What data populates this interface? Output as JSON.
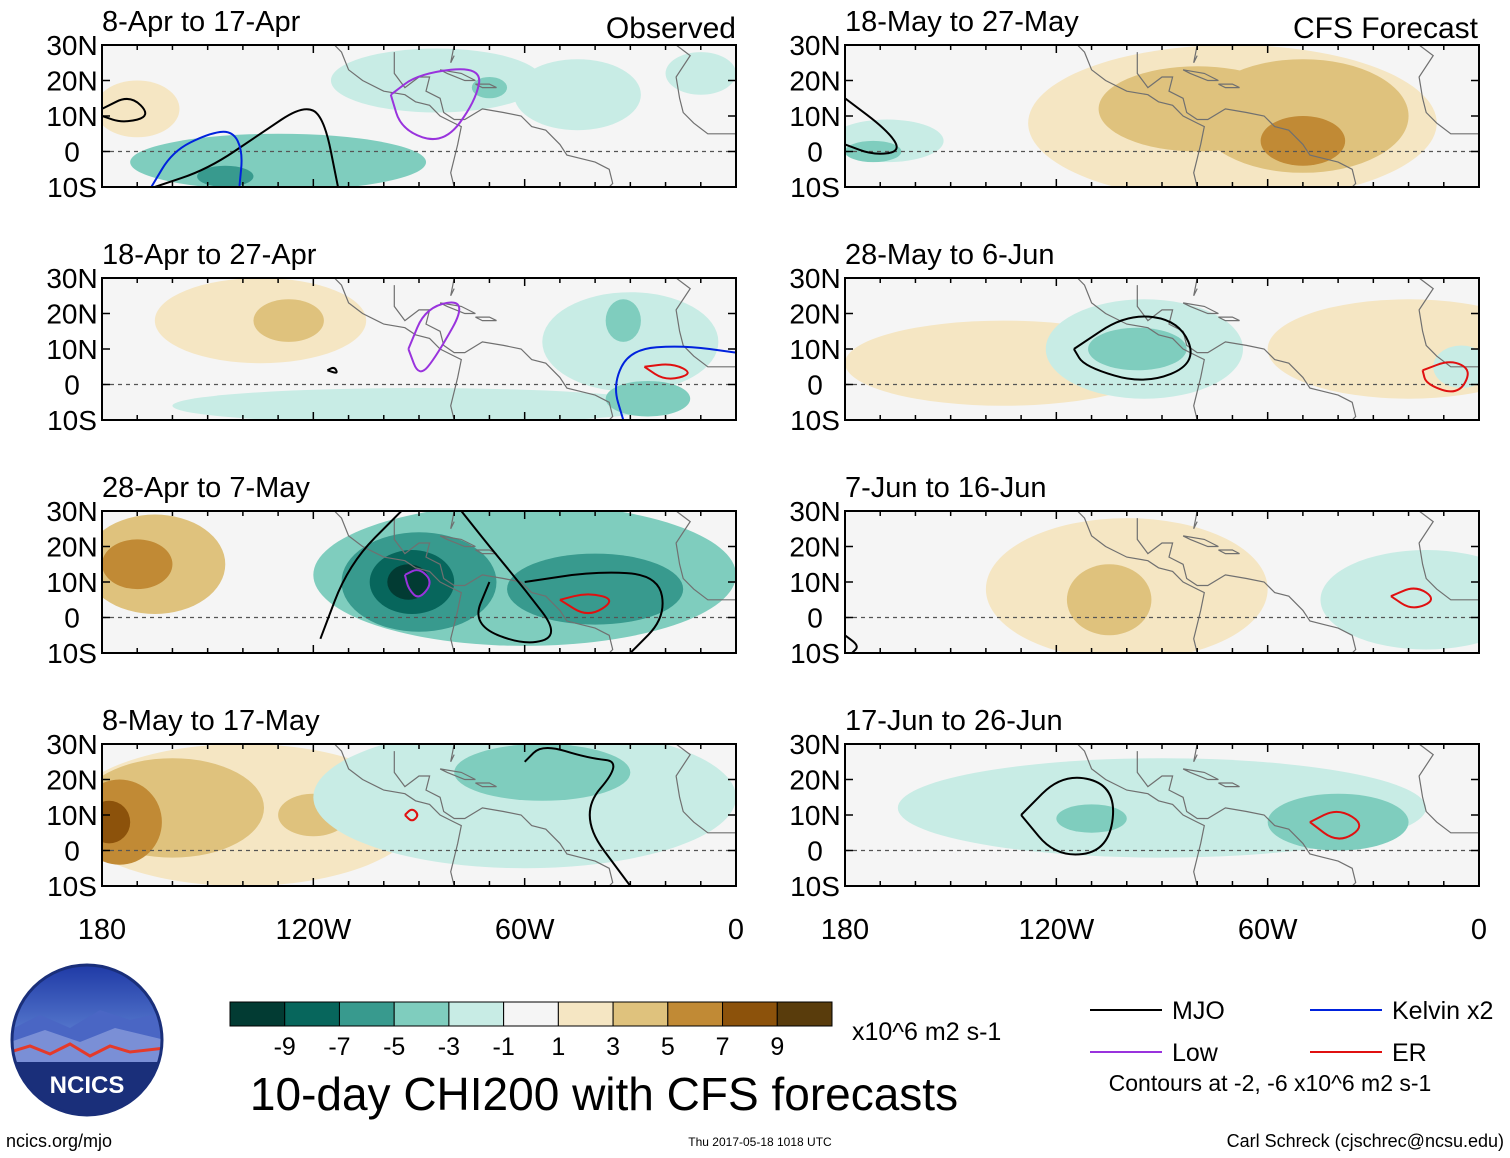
{
  "title": "10-day CHI200 with CFS forecasts",
  "url": "ncics.org/mjo",
  "timestamp": "Thu 2017-05-18 1018 UTC",
  "author": "Carl Schreck (cjschrec@ncsu.edu)",
  "logo_text": "NCICS",
  "colors": {
    "scale": [
      "#023b33",
      "#07665c",
      "#389a8e",
      "#7fcdbe",
      "#c8ece5",
      "#f5f5f5",
      "#f5e6c3",
      "#dfc27d",
      "#c18a35",
      "#8c520b",
      "#593c0c"
    ],
    "mjo": "#000000",
    "low": "#9933dd",
    "kelvin": "#0022dd",
    "er": "#e01010",
    "coast": "#707070"
  },
  "chart_data": {
    "type": "contour-map-panels",
    "variable": "CHI200 velocity potential anomaly",
    "units": "x10^6 m2 s-1",
    "xlim": [
      -180,
      0
    ],
    "ylim": [
      -10,
      30
    ],
    "x_ticks": [
      {
        "value": -180,
        "label": "180"
      },
      {
        "value": -120,
        "label": "120W"
      },
      {
        "value": -60,
        "label": "60W"
      },
      {
        "value": 0,
        "label": "0"
      }
    ],
    "y_ticks": [
      {
        "value": 30,
        "label": "30N"
      },
      {
        "value": 20,
        "label": "20N"
      },
      {
        "value": 10,
        "label": "10N"
      },
      {
        "value": 0,
        "label": "0"
      },
      {
        "value": -10,
        "label": "10S"
      }
    ],
    "colorbar": {
      "levels": [
        -9,
        -7,
        -5,
        -3,
        -1,
        1,
        3,
        5,
        7,
        9
      ],
      "labels": [
        "-9",
        "-7",
        "-5",
        "-3",
        "-1",
        "1",
        "3",
        "5",
        "7",
        "9"
      ],
      "units_label": "x10^6 m2 s-1"
    },
    "column_headers": [
      "Observed",
      "CFS Forecast"
    ],
    "legend": [
      {
        "name": "MJO",
        "color": "#000000"
      },
      {
        "name": "Kelvin x2",
        "color": "#0022dd"
      },
      {
        "name": "Low",
        "color": "#9933dd"
      },
      {
        "name": "ER",
        "color": "#e01010"
      }
    ],
    "contours_note": "Contours at -2, -6 x10^6 m2 s-1",
    "panels": [
      {
        "title": "8-Apr to 17-Apr",
        "kind": "Observed",
        "anomalies": [
          {
            "lon": -170,
            "lat": 12,
            "rx": 12,
            "ry": 8,
            "value": 2
          },
          {
            "lon": -130,
            "lat": -3,
            "rx": 42,
            "ry": 8,
            "value": -3
          },
          {
            "lon": -145,
            "lat": -7,
            "rx": 8,
            "ry": 3,
            "value": -5
          },
          {
            "lon": -85,
            "lat": 20,
            "rx": 30,
            "ry": 9,
            "value": -2
          },
          {
            "lon": -45,
            "lat": 16,
            "rx": 18,
            "ry": 10,
            "value": -2
          },
          {
            "lon": -10,
            "lat": 22,
            "rx": 10,
            "ry": 6,
            "value": -2
          },
          {
            "lon": -70,
            "lat": 18,
            "rx": 5,
            "ry": 3,
            "value": -4
          }
        ],
        "contours": [
          {
            "type": "mjo",
            "pts": [
              [
                -180,
                12
              ],
              [
                -172,
                16
              ],
              [
                -166,
                10
              ],
              [
                -174,
                8
              ],
              [
                -180,
                10
              ]
            ]
          },
          {
            "type": "mjo",
            "pts": [
              [
                -165,
                -10
              ],
              [
                -150,
                -5
              ],
              [
                -135,
                5
              ],
              [
                -123,
                13
              ],
              [
                -117,
                10
              ],
              [
                -113,
                -10
              ]
            ]
          },
          {
            "type": "kelvin",
            "pts": [
              [
                -166,
                -10
              ],
              [
                -160,
                0
              ],
              [
                -150,
                5
              ],
              [
                -143,
                6
              ],
              [
                -140,
                0
              ],
              [
                -141,
                -10
              ]
            ]
          },
          {
            "type": "low",
            "pts": [
              [
                -98,
                16
              ],
              [
                -90,
                22
              ],
              [
                -72,
                24
              ],
              [
                -74,
                14
              ],
              [
                -83,
                2
              ],
              [
                -95,
                6
              ],
              [
                -98,
                16
              ]
            ]
          }
        ]
      },
      {
        "title": "18-May to 27-May",
        "kind": "CFS Forecast",
        "anomalies": [
          {
            "lon": -70,
            "lat": 8,
            "rx": 58,
            "ry": 22,
            "value": 2
          },
          {
            "lon": -80,
            "lat": 12,
            "rx": 28,
            "ry": 12,
            "value": 4
          },
          {
            "lon": -50,
            "lat": 10,
            "rx": 30,
            "ry": 16,
            "value": 5
          },
          {
            "lon": -50,
            "lat": 3,
            "rx": 12,
            "ry": 7,
            "value": 7
          },
          {
            "lon": -168,
            "lat": 3,
            "rx": 16,
            "ry": 6,
            "value": -2
          },
          {
            "lon": -172,
            "lat": 0,
            "rx": 8,
            "ry": 3,
            "value": -3
          }
        ],
        "contours": [
          {
            "type": "mjo",
            "pts": [
              [
                -180,
                15
              ],
              [
                -168,
                6
              ],
              [
                -164,
                0
              ],
              [
                -172,
                -1
              ],
              [
                -180,
                2
              ]
            ]
          }
        ]
      },
      {
        "title": "18-Apr to 27-Apr",
        "kind": "Observed",
        "anomalies": [
          {
            "lon": -135,
            "lat": 18,
            "rx": 30,
            "ry": 12,
            "value": 2
          },
          {
            "lon": -127,
            "lat": 18,
            "rx": 10,
            "ry": 6,
            "value": 4
          },
          {
            "lon": -90,
            "lat": -6,
            "rx": 70,
            "ry": 5,
            "value": -2
          },
          {
            "lon": -30,
            "lat": 12,
            "rx": 25,
            "ry": 14,
            "value": -2
          },
          {
            "lon": -25,
            "lat": -4,
            "rx": 12,
            "ry": 5,
            "value": -3
          },
          {
            "lon": -32,
            "lat": 18,
            "rx": 5,
            "ry": 6,
            "value": -3
          }
        ],
        "contours": [
          {
            "type": "low",
            "pts": [
              [
                -93,
                10
              ],
              [
                -88,
                22
              ],
              [
                -76,
                24
              ],
              [
                -85,
                8
              ],
              [
                -90,
                2
              ],
              [
                -93,
                10
              ]
            ]
          },
          {
            "type": "kelvin",
            "pts": [
              [
                -32,
                -10
              ],
              [
                -35,
                0
              ],
              [
                -30,
                10
              ],
              [
                -15,
                11
              ],
              [
                0,
                9
              ]
            ]
          },
          {
            "type": "er",
            "pts": [
              [
                -26,
                5
              ],
              [
                -18,
                6
              ],
              [
                -12,
                3
              ],
              [
                -20,
                1
              ],
              [
                -26,
                5
              ]
            ]
          },
          {
            "type": "mjo",
            "pts": [
              [
                -116,
                4
              ],
              [
                -114,
                5
              ],
              [
                -113,
                3
              ],
              [
                -116,
                4
              ]
            ]
          }
        ]
      },
      {
        "title": "28-May to 6-Jun",
        "kind": "CFS Forecast",
        "anomalies": [
          {
            "lon": -135,
            "lat": 6,
            "rx": 45,
            "ry": 12,
            "value": 2
          },
          {
            "lon": -95,
            "lat": 10,
            "rx": 28,
            "ry": 14,
            "value": -2
          },
          {
            "lon": -97,
            "lat": 10,
            "rx": 14,
            "ry": 6,
            "value": -3
          },
          {
            "lon": -20,
            "lat": 10,
            "rx": 40,
            "ry": 14,
            "value": 2
          },
          {
            "lon": -5,
            "lat": 5,
            "rx": 8,
            "ry": 6,
            "value": -2
          }
        ],
        "contours": [
          {
            "type": "mjo",
            "pts": [
              [
                -115,
                10
              ],
              [
                -100,
                20
              ],
              [
                -85,
                18
              ],
              [
                -80,
                6
              ],
              [
                -95,
                0
              ],
              [
                -112,
                5
              ],
              [
                -115,
                10
              ]
            ]
          },
          {
            "type": "er",
            "pts": [
              [
                -16,
                4
              ],
              [
                -8,
                7
              ],
              [
                -2,
                4
              ],
              [
                -6,
                -3
              ],
              [
                -15,
                0
              ],
              [
                -16,
                4
              ]
            ]
          }
        ]
      },
      {
        "title": "28-Apr to 7-May",
        "kind": "Observed",
        "anomalies": [
          {
            "lon": -165,
            "lat": 15,
            "rx": 20,
            "ry": 14,
            "value": 4
          },
          {
            "lon": -170,
            "lat": 15,
            "rx": 10,
            "ry": 7,
            "value": 6
          },
          {
            "lon": -60,
            "lat": 12,
            "rx": 60,
            "ry": 20,
            "value": -3
          },
          {
            "lon": -90,
            "lat": 10,
            "rx": 22,
            "ry": 14,
            "value": -5
          },
          {
            "lon": -92,
            "lat": 10,
            "rx": 12,
            "ry": 9,
            "value": -7
          },
          {
            "lon": -93,
            "lat": 10,
            "rx": 6,
            "ry": 5,
            "value": -9
          },
          {
            "lon": -40,
            "lat": 8,
            "rx": 25,
            "ry": 10,
            "value": -5
          }
        ],
        "contours": [
          {
            "type": "mjo",
            "pts": [
              [
                -118,
                -6
              ],
              [
                -110,
                15
              ],
              [
                -95,
                30
              ]
            ]
          },
          {
            "type": "mjo",
            "pts": [
              [
                -78,
                30
              ],
              [
                -70,
                20
              ],
              [
                -60,
                8
              ],
              [
                -50,
                -5
              ],
              [
                -60,
                -8
              ],
              [
                -75,
                -2
              ],
              [
                -70,
                10
              ]
            ]
          },
          {
            "type": "mjo",
            "pts": [
              [
                -60,
                10
              ],
              [
                -40,
                13
              ],
              [
                -22,
                12
              ],
              [
                -20,
                0
              ],
              [
                -30,
                -10
              ]
            ]
          },
          {
            "type": "low",
            "pts": [
              [
                -94,
                12
              ],
              [
                -90,
                14
              ],
              [
                -86,
                10
              ],
              [
                -90,
                5
              ],
              [
                -93,
                8
              ],
              [
                -94,
                12
              ]
            ]
          },
          {
            "type": "er",
            "pts": [
              [
                -50,
                5
              ],
              [
                -42,
                7
              ],
              [
                -34,
                5
              ],
              [
                -42,
                0
              ],
              [
                -50,
                5
              ]
            ]
          }
        ]
      },
      {
        "title": "7-Jun to 16-Jun",
        "kind": "CFS Forecast",
        "anomalies": [
          {
            "lon": -100,
            "lat": 8,
            "rx": 40,
            "ry": 20,
            "value": 2
          },
          {
            "lon": -105,
            "lat": 5,
            "rx": 12,
            "ry": 10,
            "value": 4
          },
          {
            "lon": -15,
            "lat": 5,
            "rx": 30,
            "ry": 14,
            "value": -2
          }
        ],
        "contours": [
          {
            "type": "er",
            "pts": [
              [
                -25,
                6
              ],
              [
                -18,
                9
              ],
              [
                -12,
                5
              ],
              [
                -19,
                2
              ],
              [
                -25,
                6
              ]
            ]
          },
          {
            "type": "mjo",
            "pts": [
              [
                -180,
                -5
              ],
              [
                -176,
                -8
              ],
              [
                -178,
                -10
              ]
            ]
          }
        ]
      },
      {
        "title": "8-May to 17-May",
        "kind": "Observed",
        "anomalies": [
          {
            "lon": -140,
            "lat": 10,
            "rx": 50,
            "ry": 20,
            "value": 2
          },
          {
            "lon": -160,
            "lat": 12,
            "rx": 26,
            "ry": 14,
            "value": 4
          },
          {
            "lon": -175,
            "lat": 8,
            "rx": 12,
            "ry": 12,
            "value": 6
          },
          {
            "lon": -178,
            "lat": 8,
            "rx": 6,
            "ry": 6,
            "value": 8
          },
          {
            "lon": -120,
            "lat": 10,
            "rx": 10,
            "ry": 6,
            "value": 4
          },
          {
            "lon": -60,
            "lat": 15,
            "rx": 60,
            "ry": 20,
            "value": -2
          },
          {
            "lon": -55,
            "lat": 22,
            "rx": 25,
            "ry": 8,
            "value": -4
          }
        ],
        "contours": [
          {
            "type": "mjo",
            "pts": [
              [
                -60,
                25
              ],
              [
                -55,
                30
              ],
              [
                -42,
                26
              ],
              [
                -32,
                25
              ],
              [
                -45,
                10
              ],
              [
                -30,
                -10
              ]
            ]
          },
          {
            "type": "er",
            "pts": [
              [
                -94,
                10
              ],
              [
                -92,
                12
              ],
              [
                -90,
                10
              ],
              [
                -92,
                8
              ],
              [
                -94,
                10
              ]
            ]
          }
        ]
      },
      {
        "title": "17-Jun to 26-Jun",
        "kind": "CFS Forecast",
        "anomalies": [
          {
            "lon": -90,
            "lat": 12,
            "rx": 75,
            "ry": 14,
            "value": -2
          },
          {
            "lon": -110,
            "lat": 9,
            "rx": 10,
            "ry": 4,
            "value": -3
          },
          {
            "lon": -40,
            "lat": 8,
            "rx": 20,
            "ry": 8,
            "value": -3
          }
        ],
        "contours": [
          {
            "type": "mjo",
            "pts": [
              [
                -130,
                10
              ],
              [
                -118,
                22
              ],
              [
                -103,
                18
              ],
              [
                -105,
                0
              ],
              [
                -120,
                -2
              ],
              [
                -130,
                10
              ]
            ]
          },
          {
            "type": "er",
            "pts": [
              [
                -48,
                8
              ],
              [
                -40,
                12
              ],
              [
                -32,
                7
              ],
              [
                -40,
                2
              ],
              [
                -48,
                8
              ]
            ]
          }
        ]
      }
    ]
  }
}
